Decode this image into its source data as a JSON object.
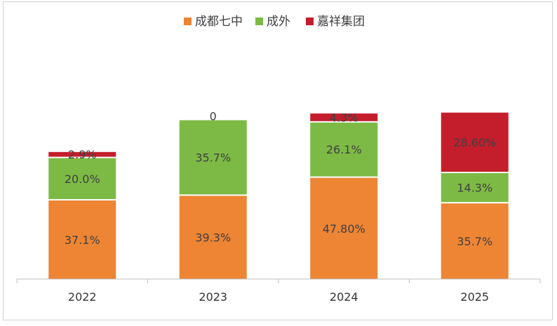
{
  "chart_data": {
    "type": "bar",
    "stacked": true,
    "categories": [
      "2022",
      "2023",
      "2024",
      "2025"
    ],
    "series": [
      {
        "name": "成都七中",
        "color": "#ED8534",
        "values": [
          37.1,
          39.3,
          47.8,
          35.7
        ],
        "labels": [
          "37.1%",
          "39.3%",
          "47.80%",
          "35.7%"
        ]
      },
      {
        "name": "成外",
        "color": "#7DBA45",
        "values": [
          20.0,
          35.7,
          26.1,
          14.3
        ],
        "labels": [
          "20.0%",
          "35.7%",
          "26.1%",
          "14.3%"
        ]
      },
      {
        "name": "嘉祥集团",
        "color": "#C41E2C",
        "values": [
          2.9,
          0,
          4.3,
          28.6
        ],
        "labels": [
          "2.9%",
          "0",
          "4.3%",
          "28.60%"
        ]
      }
    ],
    "legend_position": "top",
    "grid": false
  }
}
